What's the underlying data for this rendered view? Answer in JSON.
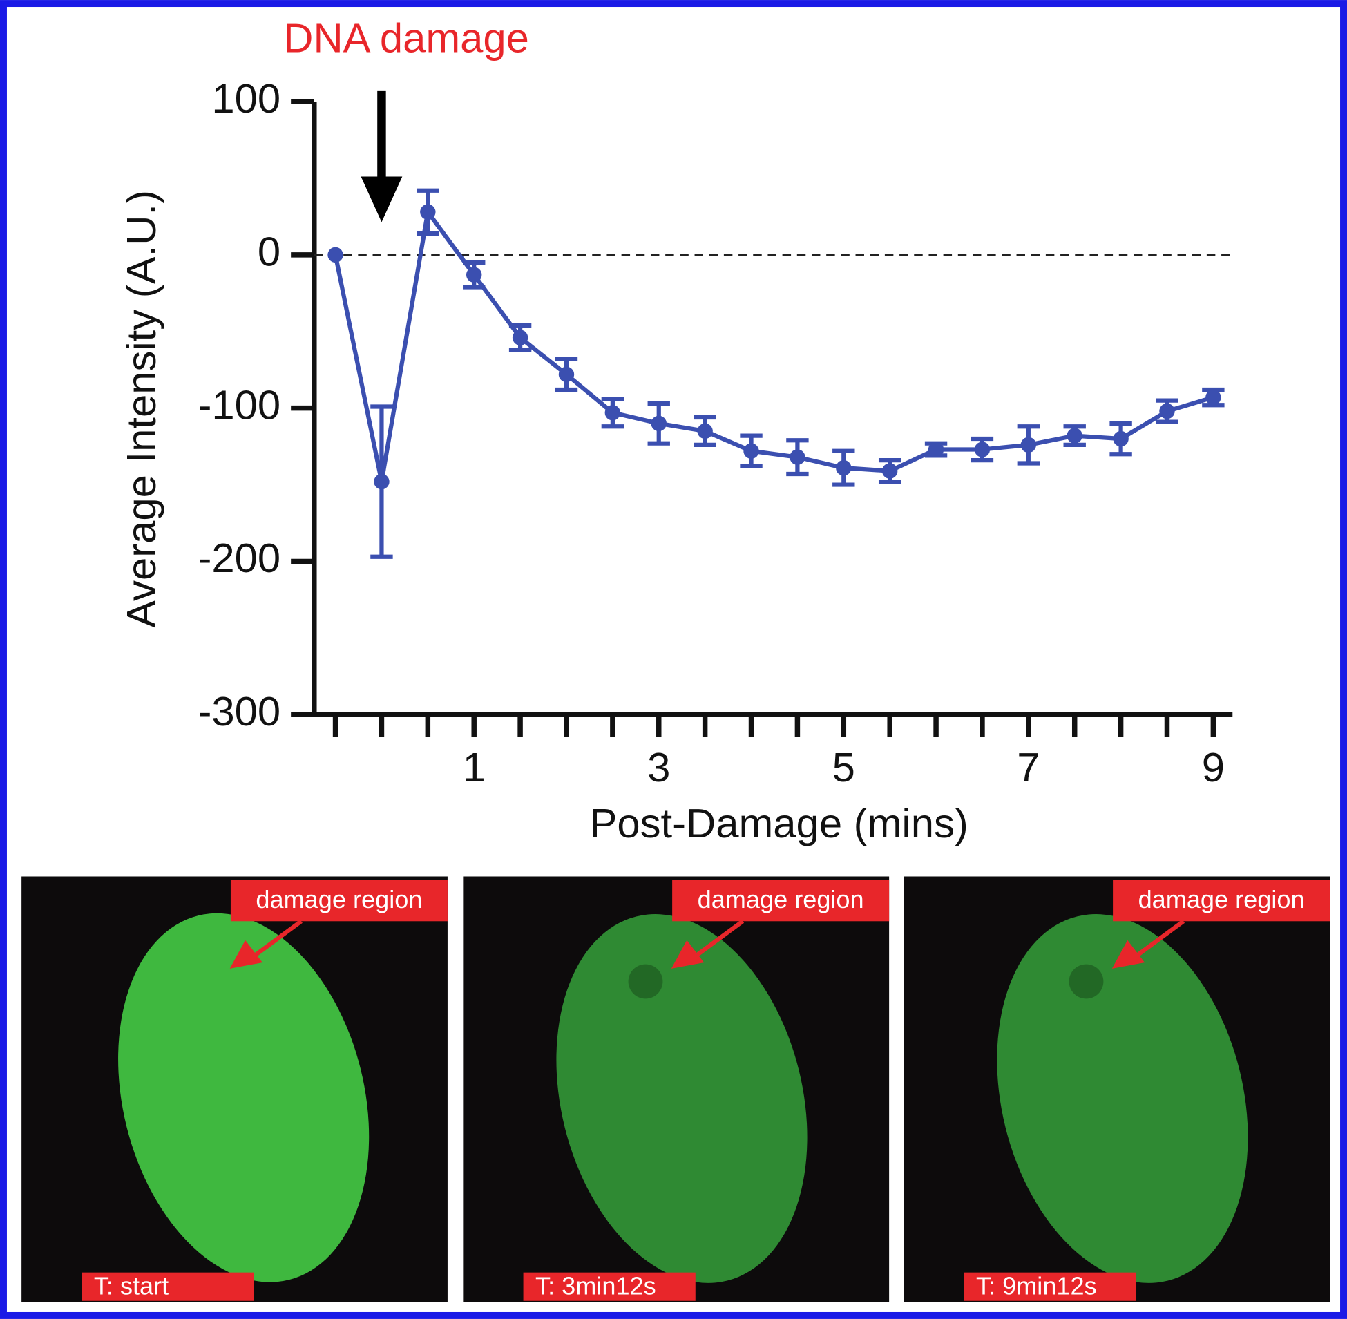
{
  "chart_data": {
    "type": "line",
    "annotation": "DNA damage",
    "x_label": "Post-Damage (mins)",
    "y_label": "Average Intensity (A.U.)",
    "x": [
      -0.5,
      0,
      0.5,
      1,
      1.5,
      2,
      2.5,
      3,
      3.5,
      4,
      4.5,
      5,
      5.5,
      6,
      6.5,
      7,
      7.5,
      8,
      8.5,
      9
    ],
    "series": [
      {
        "color": "#3b4fb0",
        "values": [
          0,
          -148,
          28,
          -13,
          -54,
          -78,
          -103,
          -110,
          -115,
          -128,
          -132,
          -139,
          -141,
          -127,
          -127,
          -124,
          -118,
          -120,
          -102,
          -93
        ],
        "errors": [
          0,
          49,
          14,
          8,
          8,
          10,
          9,
          13,
          9,
          10,
          11,
          11,
          7,
          4,
          7,
          12,
          6,
          10,
          7,
          5
        ]
      }
    ],
    "xlim": [
      -0.73,
      9.19
    ],
    "ylim": [
      -300,
      100
    ],
    "xticks": [
      1,
      3,
      5,
      7,
      9
    ],
    "minor_xticks": [
      -0.5,
      0,
      0.5,
      1,
      1.5,
      2,
      2.5,
      3,
      3.5,
      4,
      4.5,
      5,
      5.5,
      6,
      6.5,
      7,
      7.5,
      8,
      8.5,
      9
    ],
    "yticks": [
      -300,
      -200,
      -100,
      0,
      100
    ],
    "reference_line": 0
  },
  "panels": [
    {
      "label": "damage region",
      "time": "T: start"
    },
    {
      "label": "damage region",
      "time": "T: 3min12s"
    },
    {
      "label": "damage region",
      "time": "T: 9min12s"
    }
  ]
}
